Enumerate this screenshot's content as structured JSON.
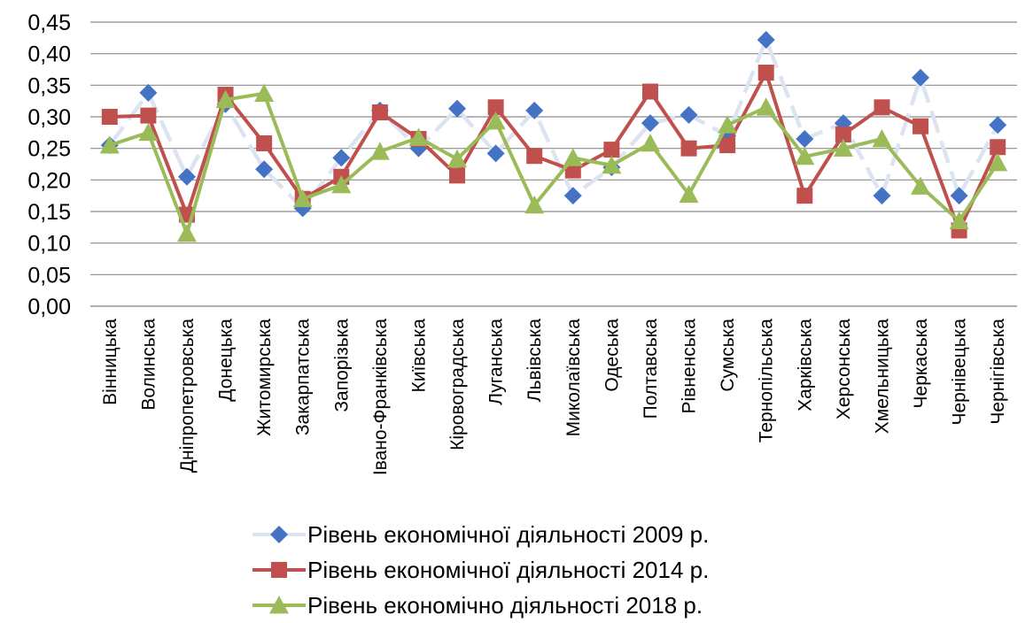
{
  "chart_data": {
    "type": "line",
    "categories": [
      "Вінницька",
      "Волинська",
      "Дніпропетровська",
      "Донецька",
      "Житомирська",
      "Закарпатська",
      "Запорізька",
      "Івано-Франківська",
      "Київська",
      "Кіровоградська",
      "Луганська",
      "Львівська",
      "Миколаївська",
      "Одеська",
      "Полтавська",
      "Рівненська",
      "Сумська",
      "Тернопільська",
      "Харківська",
      "Херсонська",
      "Хмельницька",
      "Черкаська",
      "Чернівецька",
      "Чернігівська"
    ],
    "y_ticks": [
      "0,00",
      "0,05",
      "0,10",
      "0,15",
      "0,20",
      "0,25",
      "0,30",
      "0,35",
      "0,40",
      "0,45"
    ],
    "ylim": [
      0,
      0.45
    ],
    "grid": true,
    "legend_position": "bottom",
    "series": [
      {
        "name": "Рівень економічної діяльності 2009 р.",
        "color": "#4472C4",
        "line_color": "#DCE4F2",
        "line_style": "dashed",
        "marker": "diamond",
        "values": [
          0.255,
          0.338,
          0.205,
          0.32,
          0.217,
          0.155,
          0.235,
          0.31,
          0.25,
          0.313,
          0.242,
          0.31,
          0.175,
          0.22,
          0.29,
          0.303,
          0.27,
          0.422,
          0.265,
          0.29,
          0.175,
          0.362,
          0.175,
          0.287
        ]
      },
      {
        "name": "Рівень економічної діяльності 2014 р.",
        "color": "#C0504D",
        "line_color": "#C0504D",
        "line_style": "solid",
        "marker": "square",
        "values": [
          0.3,
          0.302,
          0.145,
          0.335,
          0.258,
          0.17,
          0.205,
          0.307,
          0.265,
          0.207,
          0.315,
          0.238,
          0.215,
          0.248,
          0.34,
          0.25,
          0.255,
          0.37,
          0.175,
          0.272,
          0.315,
          0.285,
          0.12,
          0.252
        ]
      },
      {
        "name": "Рівень економічно діяльності 2018 р.",
        "color": "#9BBB59",
        "line_color": "#9BBB59",
        "line_style": "solid",
        "marker": "triangle",
        "values": [
          0.255,
          0.275,
          0.115,
          0.327,
          0.337,
          0.17,
          0.192,
          0.245,
          0.267,
          0.233,
          0.293,
          0.16,
          0.235,
          0.223,
          0.258,
          0.177,
          0.287,
          0.315,
          0.237,
          0.25,
          0.265,
          0.19,
          0.135,
          0.227
        ]
      }
    ]
  }
}
